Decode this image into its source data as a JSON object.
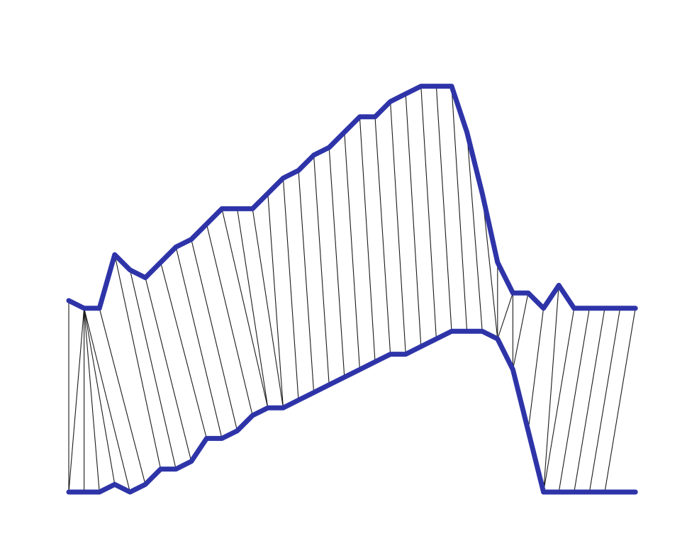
{
  "diagram": {
    "description_free": true,
    "colors": {
      "curve": "#2e34a8",
      "connector": "#1a1a1a",
      "background": "#ffffff"
    },
    "upper_curve": [
      [
        0,
        19
      ],
      [
        1,
        18
      ],
      [
        2,
        18
      ],
      [
        3,
        25
      ],
      [
        4,
        23
      ],
      [
        5,
        22
      ],
      [
        6,
        24
      ],
      [
        7,
        26
      ],
      [
        8,
        27
      ],
      [
        9,
        29
      ],
      [
        10,
        31
      ],
      [
        11,
        31
      ],
      [
        12,
        31
      ],
      [
        13,
        33
      ],
      [
        14,
        35
      ],
      [
        15,
        36
      ],
      [
        16,
        38
      ],
      [
        17,
        39
      ],
      [
        18,
        41
      ],
      [
        19,
        43
      ],
      [
        20,
        43
      ],
      [
        21,
        45
      ],
      [
        22,
        46
      ],
      [
        23,
        47
      ],
      [
        24,
        47
      ],
      [
        25,
        47
      ],
      [
        26,
        41
      ],
      [
        27,
        33
      ],
      [
        28,
        24
      ],
      [
        29,
        20
      ],
      [
        30,
        20
      ],
      [
        31,
        18
      ],
      [
        32,
        21
      ],
      [
        33,
        18
      ],
      [
        34,
        18
      ],
      [
        35,
        18
      ],
      [
        36,
        18
      ],
      [
        37,
        18
      ]
    ],
    "lower_curve": [
      [
        0,
        -6
      ],
      [
        1,
        -6
      ],
      [
        2,
        -6
      ],
      [
        3,
        -5
      ],
      [
        4,
        -6
      ],
      [
        5,
        -5
      ],
      [
        6,
        -3
      ],
      [
        7,
        -3
      ],
      [
        8,
        -2
      ],
      [
        9,
        1
      ],
      [
        10,
        1
      ],
      [
        11,
        2
      ],
      [
        12,
        4
      ],
      [
        13,
        5
      ],
      [
        14,
        5
      ],
      [
        15,
        6
      ],
      [
        16,
        7
      ],
      [
        17,
        8
      ],
      [
        18,
        9
      ],
      [
        19,
        10
      ],
      [
        20,
        11
      ],
      [
        21,
        12
      ],
      [
        22,
        12
      ],
      [
        23,
        13
      ],
      [
        24,
        14
      ],
      [
        25,
        15
      ],
      [
        26,
        15
      ],
      [
        27,
        15
      ],
      [
        28,
        14
      ],
      [
        29,
        10
      ],
      [
        30,
        2
      ],
      [
        31,
        -6
      ],
      [
        32,
        -6
      ],
      [
        33,
        -6
      ],
      [
        34,
        -6
      ],
      [
        35,
        -6
      ],
      [
        36,
        -6
      ],
      [
        37,
        -6
      ]
    ],
    "connections": [
      [
        0,
        0
      ],
      [
        1,
        0
      ],
      [
        1,
        1
      ],
      [
        1,
        2
      ],
      [
        1,
        3
      ],
      [
        1,
        4
      ],
      [
        2,
        5
      ],
      [
        3,
        6
      ],
      [
        4,
        7
      ],
      [
        5,
        8
      ],
      [
        6,
        9
      ],
      [
        7,
        10
      ],
      [
        8,
        11
      ],
      [
        9,
        12
      ],
      [
        10,
        13
      ],
      [
        11,
        13
      ],
      [
        12,
        14
      ],
      [
        13,
        14
      ],
      [
        14,
        15
      ],
      [
        15,
        16
      ],
      [
        16,
        17
      ],
      [
        17,
        18
      ],
      [
        18,
        19
      ],
      [
        19,
        20
      ],
      [
        20,
        21
      ],
      [
        21,
        22
      ],
      [
        22,
        23
      ],
      [
        23,
        24
      ],
      [
        24,
        25
      ],
      [
        25,
        26
      ],
      [
        26,
        27
      ],
      [
        27,
        28
      ],
      [
        28,
        28
      ],
      [
        29,
        28
      ],
      [
        29,
        29
      ],
      [
        30,
        29
      ],
      [
        31,
        30
      ],
      [
        32,
        31
      ],
      [
        33,
        31
      ],
      [
        34,
        32
      ],
      [
        35,
        33
      ],
      [
        36,
        34
      ],
      [
        37,
        35
      ]
    ]
  }
}
